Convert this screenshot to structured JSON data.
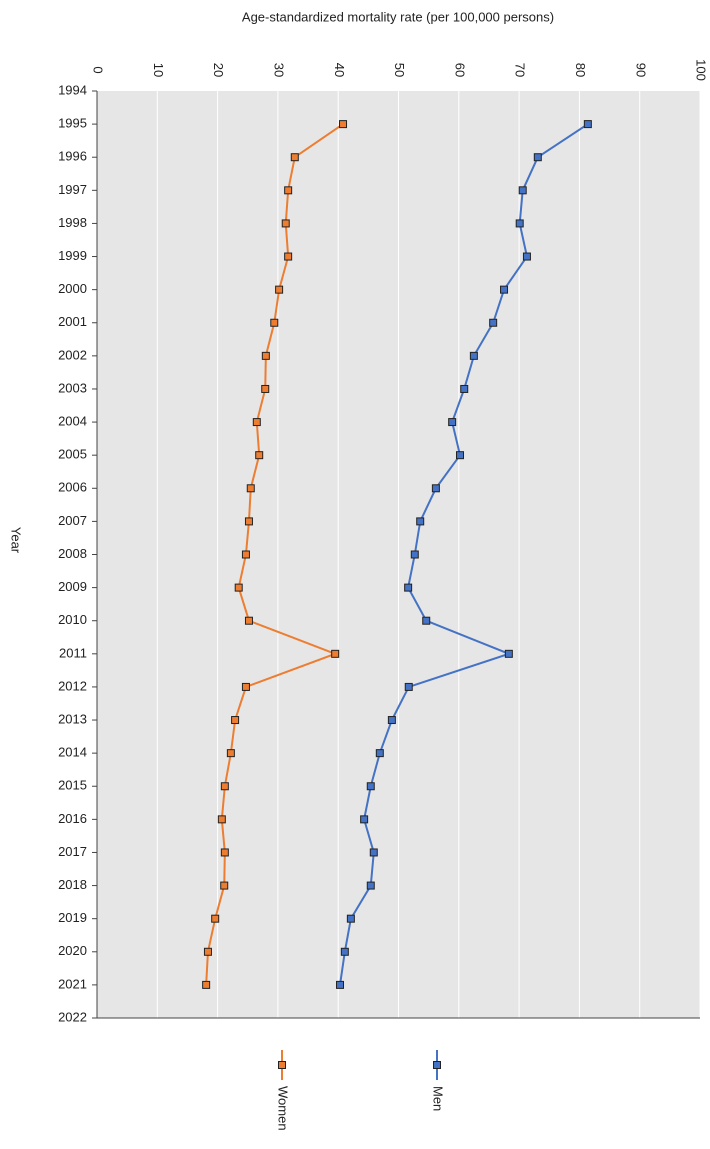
{
  "chart_data": {
    "type": "line",
    "title": "Age-standardized mortality rate (per 100,000 persons)",
    "y_axis_label": "Year",
    "x": [
      1995,
      1996,
      1997,
      1998,
      1999,
      2000,
      2001,
      2002,
      2003,
      2004,
      2005,
      2006,
      2007,
      2008,
      2009,
      2010,
      2011,
      2012,
      2013,
      2014,
      2015,
      2016,
      2017,
      2018,
      2019,
      2020,
      2021
    ],
    "series": [
      {
        "name": "Men",
        "color": "#4472c4",
        "values": [
          81.4,
          73.1,
          70.6,
          70.1,
          71.3,
          67.5,
          65.7,
          62.5,
          60.9,
          58.9,
          60.2,
          56.2,
          53.6,
          52.7,
          51.6,
          54.6,
          68.3,
          51.7,
          48.9,
          46.9,
          45.4,
          44.3,
          45.9,
          45.4,
          42.1,
          41.1,
          40.3
        ]
      },
      {
        "name": "Women",
        "color": "#ed7d31",
        "values": [
          40.8,
          32.8,
          31.7,
          31.3,
          31.7,
          30.2,
          29.4,
          28.0,
          27.9,
          26.5,
          26.9,
          25.5,
          25.2,
          24.7,
          23.5,
          25.2,
          39.5,
          24.7,
          22.9,
          22.2,
          21.2,
          20.7,
          21.2,
          21.1,
          19.6,
          18.4,
          18.1
        ]
      }
    ],
    "xlim": [
      1994,
      2022
    ],
    "xticks": [
      1994,
      1995,
      1996,
      1997,
      1998,
      1999,
      2000,
      2001,
      2002,
      2003,
      2004,
      2005,
      2006,
      2007,
      2008,
      2009,
      2010,
      2011,
      2012,
      2013,
      2014,
      2015,
      2016,
      2017,
      2018,
      2019,
      2020,
      2021,
      2022
    ],
    "ylim": [
      0,
      100
    ],
    "yticks": [
      0,
      10,
      20,
      30,
      40,
      50,
      60,
      70,
      80,
      90,
      100
    ],
    "grid": true
  }
}
